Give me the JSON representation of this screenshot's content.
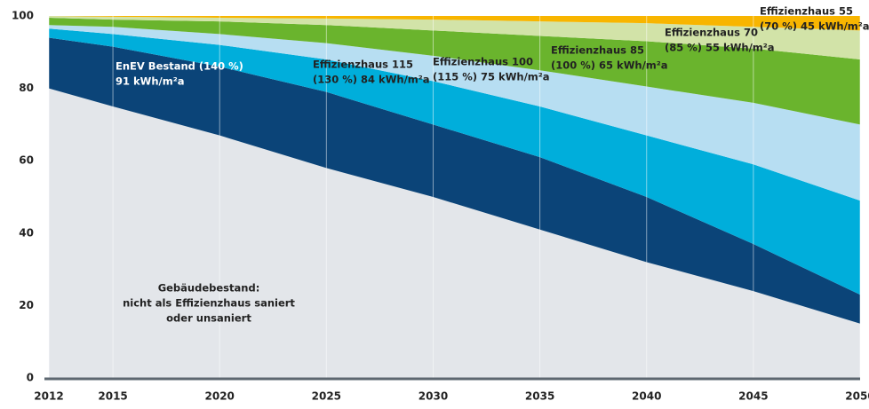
{
  "chart_data": {
    "type": "stacked_area",
    "x": [
      2012,
      2015,
      2020,
      2025,
      2030,
      2035,
      2040,
      2045,
      2050
    ],
    "xlim": [
      2012,
      2050
    ],
    "xticks": [
      2012,
      2015,
      2020,
      2025,
      2030,
      2035,
      2040,
      2045,
      2050
    ],
    "ylim": [
      0,
      100
    ],
    "yticks": [
      0,
      20,
      40,
      60,
      80,
      100
    ],
    "grid": true,
    "series": [
      {
        "name": "Gebäudebestand:",
        "label_lines": [
          "nicht als Effizienzhaus saniert",
          "oder unsaniert"
        ],
        "color": "#e3e6ea",
        "values": [
          80,
          75,
          67,
          58,
          50,
          41,
          32,
          24,
          15
        ]
      },
      {
        "name": "EnEV Bestand (140 %)",
        "label_lines": [
          "91 kWh/m²a"
        ],
        "color": "#0b4478",
        "values": [
          14,
          16.5,
          19,
          21,
          20,
          20,
          18,
          13,
          8
        ]
      },
      {
        "name": "Effizienzhaus 115",
        "label_lines": [
          "(130 %) 84 kWh/m²a"
        ],
        "color": "#00aedb",
        "values": [
          2.5,
          3.5,
          6,
          9,
          12,
          14,
          17,
          22,
          26
        ]
      },
      {
        "name": "Effizienzhaus 100",
        "label_lines": [
          "(115 %) 75 kWh/m²a"
        ],
        "color": "#b7def2",
        "values": [
          1,
          2,
          3,
          4.5,
          7,
          10,
          13.5,
          17,
          21
        ]
      },
      {
        "name": "Effizienzhaus 85",
        "label_lines": [
          "(100 %) 65 kWh/m²a"
        ],
        "color": "#6ab42d",
        "values": [
          2,
          2,
          3.5,
          5,
          7,
          9.5,
          12.5,
          15,
          18
        ]
      },
      {
        "name": "Effizienzhaus 70",
        "label_lines": [
          "(85 %) 55 kWh/m²a"
        ],
        "color": "#d2e3a8",
        "values": [
          0.5,
          0.8,
          1,
          1.8,
          3,
          4,
          5,
          6,
          8
        ]
      },
      {
        "name": "Effizienzhaus 55",
        "label_lines": [
          "(70 %) 45 kWh/m²a"
        ],
        "color": "#f8b500",
        "values": [
          0,
          0.2,
          0.5,
          0.7,
          1,
          1.5,
          2,
          3,
          4
        ]
      }
    ]
  }
}
